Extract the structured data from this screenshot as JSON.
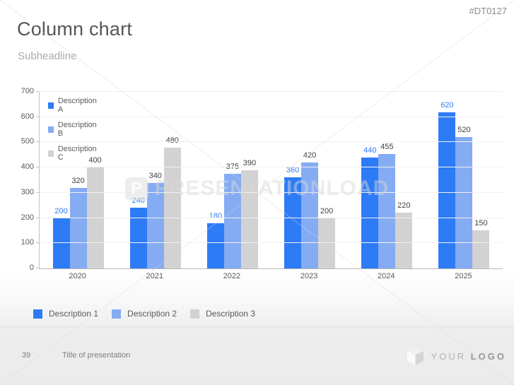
{
  "slide": {
    "title": "Column chart",
    "subheadline": "Subheadline",
    "code": "#DT0127"
  },
  "watermark": {
    "text": "PRESENTATIONLOAD",
    "logo_letter": "P"
  },
  "chart_data": {
    "type": "bar",
    "title": "",
    "xlabel": "",
    "ylabel": "",
    "categories": [
      "2020",
      "2021",
      "2022",
      "2023",
      "2024",
      "2025"
    ],
    "series": [
      {
        "name": "Description A",
        "color": "#2e7bf6",
        "label_color": "#2e7bf6",
        "values": [
          200,
          240,
          180,
          360,
          440,
          620
        ]
      },
      {
        "name": "Description B",
        "color": "#85abf3",
        "label_color": "#404040",
        "values": [
          320,
          340,
          375,
          420,
          455,
          520
        ]
      },
      {
        "name": "Description C",
        "color": "#d2d2d2",
        "label_color": "#404040",
        "values": [
          400,
          480,
          390,
          200,
          220,
          150
        ]
      }
    ],
    "ylim": [
      0,
      700
    ],
    "ytick_step": 100,
    "grid": true,
    "legend_position": "top-left-inside"
  },
  "bottom_legend": {
    "items": [
      {
        "label": "Description 1",
        "color": "#2e7bf6"
      },
      {
        "label": "Description 2",
        "color": "#85abf3"
      },
      {
        "label": "Description 3",
        "color": "#d2d2d2"
      }
    ]
  },
  "footer": {
    "page_number": "39",
    "presentation_title": "Title of presentation",
    "logo_word_light": "YOUR",
    "logo_word_bold": "LOGO"
  }
}
